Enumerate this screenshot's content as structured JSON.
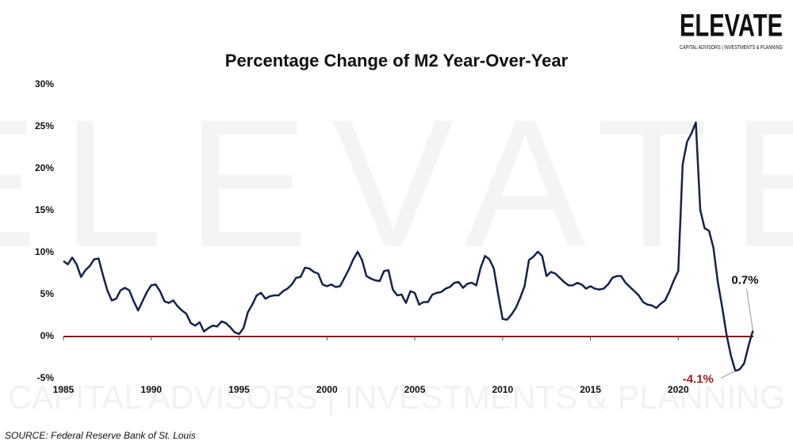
{
  "chart_data": {
    "type": "line",
    "title": "Percentage Change of M2 Year-Over-Year",
    "source": "SOURCE: Federal Reserve Bank of St. Louis",
    "logo": {
      "name": "ELEVATE",
      "tagline": "CAPITAL ADVISORS | INVESTMENTS & PLANNING"
    },
    "xlim": [
      1985,
      2024.5
    ],
    "ylim": [
      -5,
      30
    ],
    "xticks": [
      1985,
      1990,
      1995,
      2000,
      2005,
      2010,
      2015,
      2020
    ],
    "yticks": [
      {
        "value": -5,
        "label": "-5%"
      },
      {
        "value": 0,
        "label": "0%"
      },
      {
        "value": 5,
        "label": "5%"
      },
      {
        "value": 10,
        "label": "10%"
      },
      {
        "value": 15,
        "label": "15%"
      },
      {
        "value": 20,
        "label": "20%"
      },
      {
        "value": 25,
        "label": "25%"
      },
      {
        "value": 30,
        "label": "30%"
      }
    ],
    "zero_line_color": "#8b1a1a",
    "x": [
      1985,
      1985.25,
      1985.5,
      1985.75,
      1986,
      1986.25,
      1986.5,
      1986.75,
      1987,
      1987.25,
      1987.5,
      1987.75,
      1988,
      1988.25,
      1988.5,
      1988.75,
      1989,
      1989.25,
      1989.5,
      1989.75,
      1990,
      1990.25,
      1990.5,
      1990.75,
      1991,
      1991.25,
      1991.5,
      1991.75,
      1992,
      1992.25,
      1992.5,
      1992.75,
      1993,
      1993.25,
      1993.5,
      1993.75,
      1994,
      1994.25,
      1994.5,
      1994.75,
      1995,
      1995.25,
      1995.5,
      1995.75,
      1996,
      1996.25,
      1996.5,
      1996.75,
      1997,
      1997.25,
      1997.5,
      1997.75,
      1998,
      1998.25,
      1998.5,
      1998.75,
      1999,
      1999.25,
      1999.5,
      1999.75,
      2000,
      2000.25,
      2000.5,
      2000.75,
      2001,
      2001.25,
      2001.5,
      2001.75,
      2002,
      2002.25,
      2002.5,
      2002.75,
      2003,
      2003.25,
      2003.5,
      2003.75,
      2004,
      2004.25,
      2004.5,
      2004.75,
      2005,
      2005.25,
      2005.5,
      2005.75,
      2006,
      2006.25,
      2006.5,
      2006.75,
      2007,
      2007.25,
      2007.5,
      2007.75,
      2008,
      2008.25,
      2008.5,
      2008.75,
      2009,
      2009.25,
      2009.5,
      2009.75,
      2010,
      2010.25,
      2010.5,
      2010.75,
      2011,
      2011.25,
      2011.5,
      2011.75,
      2012,
      2012.25,
      2012.5,
      2012.75,
      2013,
      2013.25,
      2013.5,
      2013.75,
      2014,
      2014.25,
      2014.5,
      2014.75,
      2015,
      2015.25,
      2015.5,
      2015.75,
      2016,
      2016.25,
      2016.5,
      2016.75,
      2017,
      2017.25,
      2017.5,
      2017.75,
      2018,
      2018.25,
      2018.5,
      2018.75,
      2019,
      2019.25,
      2019.5,
      2019.75,
      2020,
      2020.25,
      2020.5,
      2020.75,
      2021,
      2021.25,
      2021.5,
      2021.75,
      2022,
      2022.25,
      2022.5,
      2022.75,
      2023,
      2023.25,
      2023.5,
      2023.75,
      2024,
      2024.25
    ],
    "series": [
      {
        "color": "#14234b",
        "values": [
          9.0,
          8.6,
          9.4,
          8.6,
          7.1,
          7.9,
          8.4,
          9.2,
          9.3,
          7.3,
          5.5,
          4.3,
          4.5,
          5.5,
          5.8,
          5.5,
          4.2,
          3.1,
          4.2,
          5.3,
          6.1,
          6.2,
          5.4,
          4.2,
          4.0,
          4.3,
          3.6,
          3.1,
          2.7,
          1.6,
          1.3,
          1.7,
          0.6,
          1.0,
          1.3,
          1.2,
          1.8,
          1.6,
          1.1,
          0.5,
          0.3,
          1.0,
          2.9,
          3.8,
          4.9,
          5.2,
          4.5,
          4.8,
          4.9,
          4.9,
          5.4,
          5.7,
          6.2,
          7.0,
          7.1,
          8.2,
          8.1,
          7.7,
          7.5,
          6.2,
          6.0,
          6.2,
          5.9,
          6.0,
          7.0,
          8.0,
          9.2,
          10.1,
          9.1,
          7.2,
          6.9,
          6.7,
          6.6,
          7.8,
          7.9,
          5.6,
          4.9,
          5.0,
          4.0,
          5.4,
          5.2,
          3.8,
          4.1,
          4.1,
          5.0,
          5.2,
          5.3,
          5.7,
          5.9,
          6.4,
          6.5,
          5.8,
          6.3,
          6.4,
          6.1,
          8.2,
          9.6,
          9.2,
          8.1,
          5.0,
          2.1,
          2.0,
          2.6,
          3.4,
          4.6,
          6.0,
          9.1,
          9.5,
          10.1,
          9.6,
          7.2,
          7.7,
          7.5,
          7.0,
          6.5,
          6.1,
          6.1,
          6.4,
          6.2,
          5.7,
          6.0,
          5.7,
          5.6,
          5.7,
          6.2,
          7.0,
          7.2,
          7.2,
          6.4,
          5.9,
          5.4,
          4.9,
          4.1,
          3.8,
          3.7,
          3.4,
          3.9,
          4.3,
          5.4,
          6.7,
          7.8,
          20.5,
          23.2,
          24.2,
          25.5,
          15.1,
          12.9,
          12.6,
          10.6,
          6.5,
          3.5,
          0.2,
          -2.3,
          -4.1,
          -3.9,
          -3.2,
          -1.1,
          0.7
        ]
      }
    ],
    "annotations": [
      {
        "label": "0.7%",
        "value": 0.7,
        "x": 2024.25,
        "color": "#111111"
      },
      {
        "label": "-4.1%",
        "value": -4.1,
        "x": 2023.25,
        "color": "#a3191c"
      }
    ]
  }
}
